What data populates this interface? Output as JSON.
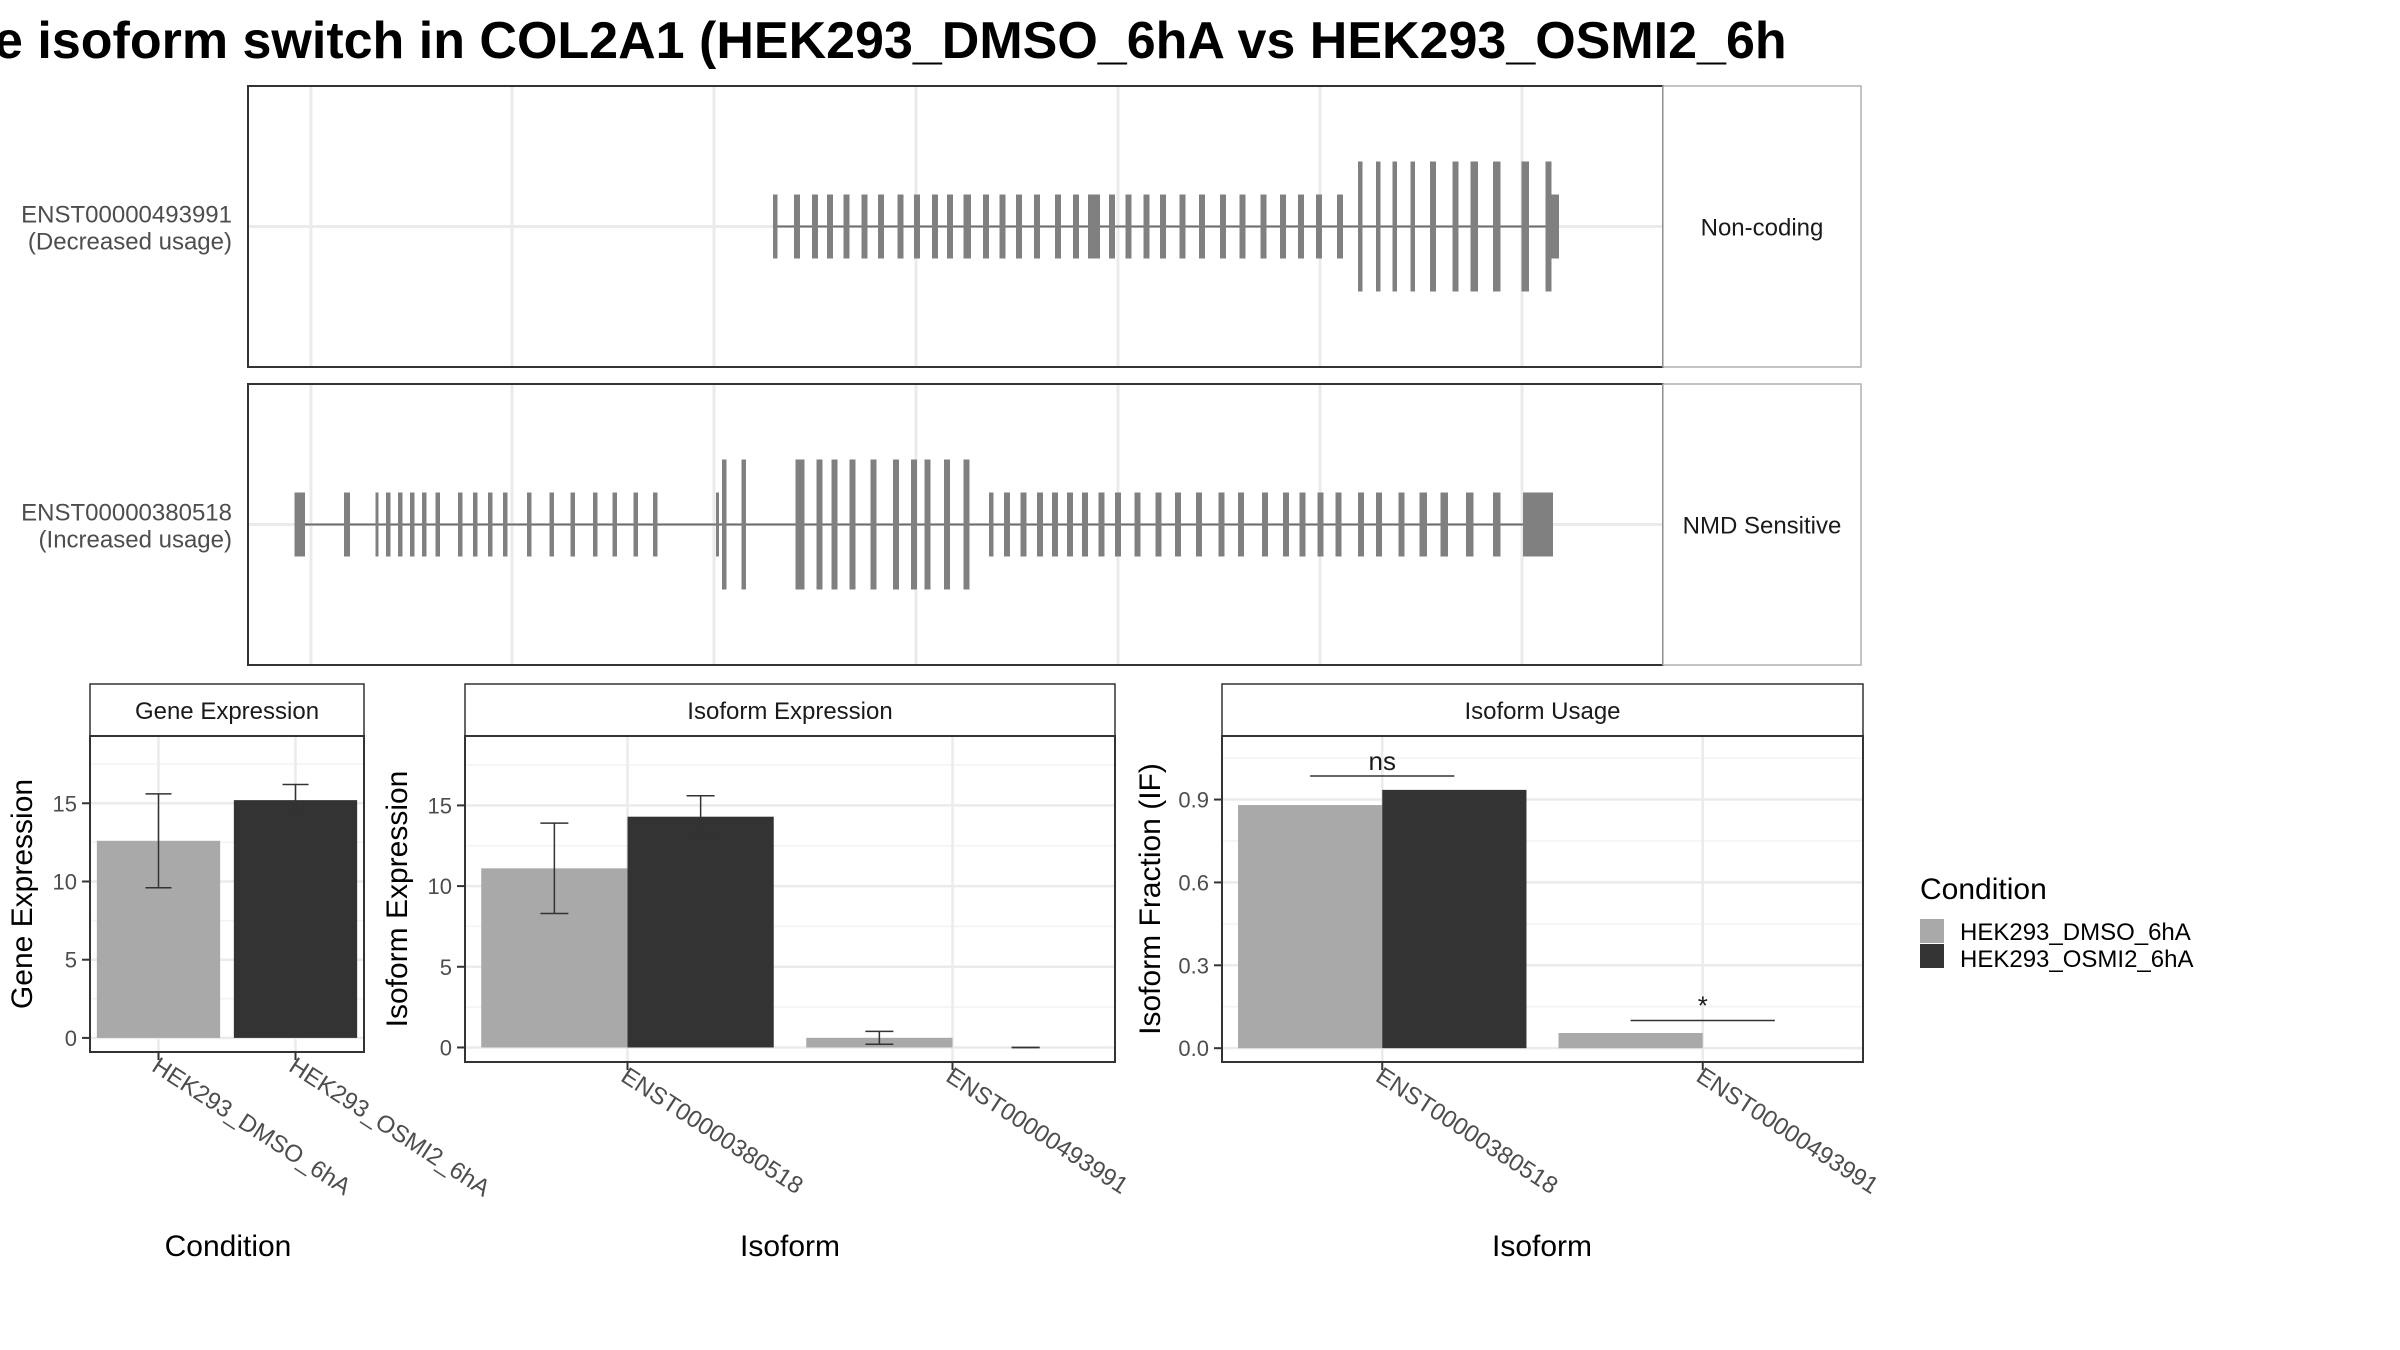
{
  "title": "e isoform switch in COL2A1 (HEK293_DMSO_6hA vs HEK293_OSMI2_6h",
  "colors": {
    "dmso": "#a9a9a9",
    "osmi": "#333333",
    "exon": "#808080",
    "grid": "#ebebeb",
    "strip_bg": "#ffffff",
    "border": "#333333"
  },
  "transcripts": [
    {
      "id": "ENST00000493991",
      "usage": "(Decreased usage)",
      "strip": "Non-coding",
      "exons": [
        {
          "s": 350,
          "w": 3,
          "h": "m"
        },
        {
          "s": 364,
          "w": 4,
          "h": "m"
        },
        {
          "s": 376,
          "w": 4,
          "h": "m"
        },
        {
          "s": 386,
          "w": 4,
          "h": "m"
        },
        {
          "s": 397,
          "w": 4,
          "h": "m"
        },
        {
          "s": 409,
          "w": 4,
          "h": "m"
        },
        {
          "s": 420,
          "w": 4,
          "h": "m"
        },
        {
          "s": 433,
          "w": 4,
          "h": "m"
        },
        {
          "s": 444,
          "w": 4,
          "h": "m"
        },
        {
          "s": 456,
          "w": 4,
          "h": "m"
        },
        {
          "s": 466,
          "w": 4,
          "h": "m"
        },
        {
          "s": 477,
          "w": 5,
          "h": "m"
        },
        {
          "s": 490,
          "w": 4,
          "h": "m"
        },
        {
          "s": 501,
          "w": 4,
          "h": "m"
        },
        {
          "s": 512,
          "w": 4,
          "h": "m"
        },
        {
          "s": 524,
          "w": 4,
          "h": "m"
        },
        {
          "s": 538,
          "w": 4,
          "h": "m"
        },
        {
          "s": 550,
          "w": 4,
          "h": "m"
        },
        {
          "s": 560,
          "w": 8,
          "h": "m"
        },
        {
          "s": 574,
          "w": 4,
          "h": "m"
        },
        {
          "s": 585,
          "w": 4,
          "h": "m"
        },
        {
          "s": 597,
          "w": 4,
          "h": "m"
        },
        {
          "s": 608,
          "w": 4,
          "h": "m"
        },
        {
          "s": 621,
          "w": 4,
          "h": "m"
        },
        {
          "s": 634,
          "w": 4,
          "h": "m"
        },
        {
          "s": 648,
          "w": 4,
          "h": "m"
        },
        {
          "s": 661,
          "w": 4,
          "h": "m"
        },
        {
          "s": 675,
          "w": 4,
          "h": "m"
        },
        {
          "s": 688,
          "w": 4,
          "h": "m"
        },
        {
          "s": 700,
          "w": 4,
          "h": "m"
        },
        {
          "s": 712,
          "w": 4,
          "h": "m"
        },
        {
          "s": 726,
          "w": 4,
          "h": "m"
        },
        {
          "s": 740,
          "w": 3,
          "h": "t"
        },
        {
          "s": 752,
          "w": 3,
          "h": "t"
        },
        {
          "s": 763,
          "w": 3,
          "h": "t"
        },
        {
          "s": 775,
          "w": 3,
          "h": "t"
        },
        {
          "s": 788,
          "w": 4,
          "h": "t"
        },
        {
          "s": 803,
          "w": 4,
          "h": "t"
        },
        {
          "s": 815,
          "w": 5,
          "h": "t"
        },
        {
          "s": 830,
          "w": 5,
          "h": "t"
        },
        {
          "s": 849,
          "w": 5,
          "h": "t"
        },
        {
          "s": 865,
          "w": 4,
          "h": "t"
        },
        {
          "s": 869,
          "w": 5,
          "h": "m"
        }
      ]
    },
    {
      "id": "ENST00000380518",
      "usage": "(Increased usage)",
      "strip": "NMD Sensitive",
      "exons": [
        {
          "s": 31,
          "w": 7,
          "h": "m"
        },
        {
          "s": 64,
          "w": 4,
          "h": "m"
        },
        {
          "s": 85,
          "w": 2,
          "h": "m"
        },
        {
          "s": 92,
          "w": 3,
          "h": "m"
        },
        {
          "s": 100,
          "w": 3,
          "h": "m"
        },
        {
          "s": 108,
          "w": 3,
          "h": "m"
        },
        {
          "s": 116,
          "w": 3,
          "h": "m"
        },
        {
          "s": 125,
          "w": 3,
          "h": "m"
        },
        {
          "s": 140,
          "w": 3,
          "h": "m"
        },
        {
          "s": 150,
          "w": 3,
          "h": "m"
        },
        {
          "s": 160,
          "w": 3,
          "h": "m"
        },
        {
          "s": 170,
          "w": 3,
          "h": "m"
        },
        {
          "s": 186,
          "w": 3,
          "h": "m"
        },
        {
          "s": 201,
          "w": 3,
          "h": "m"
        },
        {
          "s": 215,
          "w": 3,
          "h": "m"
        },
        {
          "s": 230,
          "w": 3,
          "h": "m"
        },
        {
          "s": 243,
          "w": 3,
          "h": "m"
        },
        {
          "s": 257,
          "w": 3,
          "h": "m"
        },
        {
          "s": 270,
          "w": 3,
          "h": "m"
        },
        {
          "s": 312,
          "w": 2,
          "h": "m"
        },
        {
          "s": 316,
          "w": 3,
          "h": "t"
        },
        {
          "s": 329,
          "w": 3,
          "h": "t"
        },
        {
          "s": 365,
          "w": 6,
          "h": "t"
        },
        {
          "s": 379,
          "w": 4,
          "h": "t"
        },
        {
          "s": 389,
          "w": 4,
          "h": "t"
        },
        {
          "s": 401,
          "w": 4,
          "h": "t"
        },
        {
          "s": 415,
          "w": 4,
          "h": "t"
        },
        {
          "s": 430,
          "w": 4,
          "h": "t"
        },
        {
          "s": 442,
          "w": 4,
          "h": "t"
        },
        {
          "s": 451,
          "w": 4,
          "h": "t"
        },
        {
          "s": 464,
          "w": 4,
          "h": "t"
        },
        {
          "s": 477,
          "w": 4,
          "h": "t"
        },
        {
          "s": 494,
          "w": 3,
          "h": "m"
        },
        {
          "s": 504,
          "w": 4,
          "h": "m"
        },
        {
          "s": 515,
          "w": 4,
          "h": "m"
        },
        {
          "s": 526,
          "w": 4,
          "h": "m"
        },
        {
          "s": 536,
          "w": 4,
          "h": "m"
        },
        {
          "s": 546,
          "w": 4,
          "h": "m"
        },
        {
          "s": 556,
          "w": 4,
          "h": "m"
        },
        {
          "s": 567,
          "w": 4,
          "h": "m"
        },
        {
          "s": 578,
          "w": 4,
          "h": "m"
        },
        {
          "s": 591,
          "w": 4,
          "h": "m"
        },
        {
          "s": 605,
          "w": 4,
          "h": "m"
        },
        {
          "s": 618,
          "w": 4,
          "h": "m"
        },
        {
          "s": 632,
          "w": 4,
          "h": "m"
        },
        {
          "s": 647,
          "w": 4,
          "h": "m"
        },
        {
          "s": 660,
          "w": 4,
          "h": "m"
        },
        {
          "s": 676,
          "w": 4,
          "h": "m"
        },
        {
          "s": 690,
          "w": 4,
          "h": "m"
        },
        {
          "s": 701,
          "w": 4,
          "h": "m"
        },
        {
          "s": 713,
          "w": 4,
          "h": "m"
        },
        {
          "s": 725,
          "w": 4,
          "h": "m"
        },
        {
          "s": 740,
          "w": 4,
          "h": "m"
        },
        {
          "s": 752,
          "w": 4,
          "h": "m"
        },
        {
          "s": 767,
          "w": 4,
          "h": "m"
        },
        {
          "s": 781,
          "w": 5,
          "h": "m"
        },
        {
          "s": 795,
          "w": 5,
          "h": "m"
        },
        {
          "s": 812,
          "w": 5,
          "h": "m"
        },
        {
          "s": 830,
          "w": 5,
          "h": "m"
        },
        {
          "s": 850,
          "w": 14,
          "h": "m"
        },
        {
          "s": 863,
          "w": 7,
          "h": "m"
        }
      ]
    }
  ],
  "chart_data": [
    {
      "type": "bar",
      "title": "Gene Expression",
      "xlabel": "Condition",
      "ylabel": "Gene Expression",
      "categories": [
        "HEK293_DMSO_6hA",
        "HEK293_OSMI2_6hA"
      ],
      "values": [
        12.6,
        15.2
      ],
      "error": [
        [
          9.6,
          15.6
        ],
        [
          14.3,
          16.2
        ]
      ],
      "ylim": [
        -0.9,
        19.3
      ],
      "yticks": [
        0,
        5,
        10,
        15
      ],
      "ytick_labels": [
        "0",
        "5",
        "10",
        "15"
      ]
    },
    {
      "type": "bar",
      "title": "Isoform Expression",
      "xlabel": "Isoform",
      "ylabel": "Isoform Expression",
      "categories": [
        "ENST00000380518",
        "ENST00000493991"
      ],
      "series": [
        {
          "name": "HEK293_DMSO_6hA",
          "values": [
            11.1,
            0.6
          ],
          "error": [
            [
              8.3,
              13.9
            ],
            [
              0.2,
              1.0
            ]
          ]
        },
        {
          "name": "HEK293_OSMI2_6hA",
          "values": [
            14.3,
            0.0
          ],
          "error": [
            [
              13.0,
              15.6
            ],
            [
              0.0,
              0.0
            ]
          ]
        }
      ],
      "ylim": [
        -0.9,
        19.3
      ],
      "yticks": [
        0,
        5,
        10,
        15
      ],
      "ytick_labels": [
        "0",
        "5",
        "10",
        "15"
      ]
    },
    {
      "type": "bar",
      "title": "Isoform Usage",
      "xlabel": "Isoform",
      "ylabel": "Isoform Fraction (IF)",
      "categories": [
        "ENST00000380518",
        "ENST00000493991"
      ],
      "series": [
        {
          "name": "HEK293_DMSO_6hA",
          "values": [
            0.88,
            0.055
          ]
        },
        {
          "name": "HEK293_OSMI2_6hA",
          "values": [
            0.935,
            0.0
          ]
        }
      ],
      "ylim": [
        -0.05,
        1.13
      ],
      "yticks": [
        0.0,
        0.3,
        0.6,
        0.9
      ],
      "ytick_labels": [
        "0.0",
        "0.3",
        "0.6",
        "0.9"
      ],
      "annotations": [
        {
          "category": "ENST00000380518",
          "label": "ns",
          "y": 0.985
        },
        {
          "category": "ENST00000493991",
          "label": "*",
          "y": 0.1
        }
      ]
    }
  ],
  "legend": {
    "title": "Condition",
    "items": [
      {
        "label": "HEK293_DMSO_6hA",
        "color": "#a9a9a9"
      },
      {
        "label": "HEK293_OSMI2_6hA",
        "color": "#333333"
      }
    ]
  }
}
